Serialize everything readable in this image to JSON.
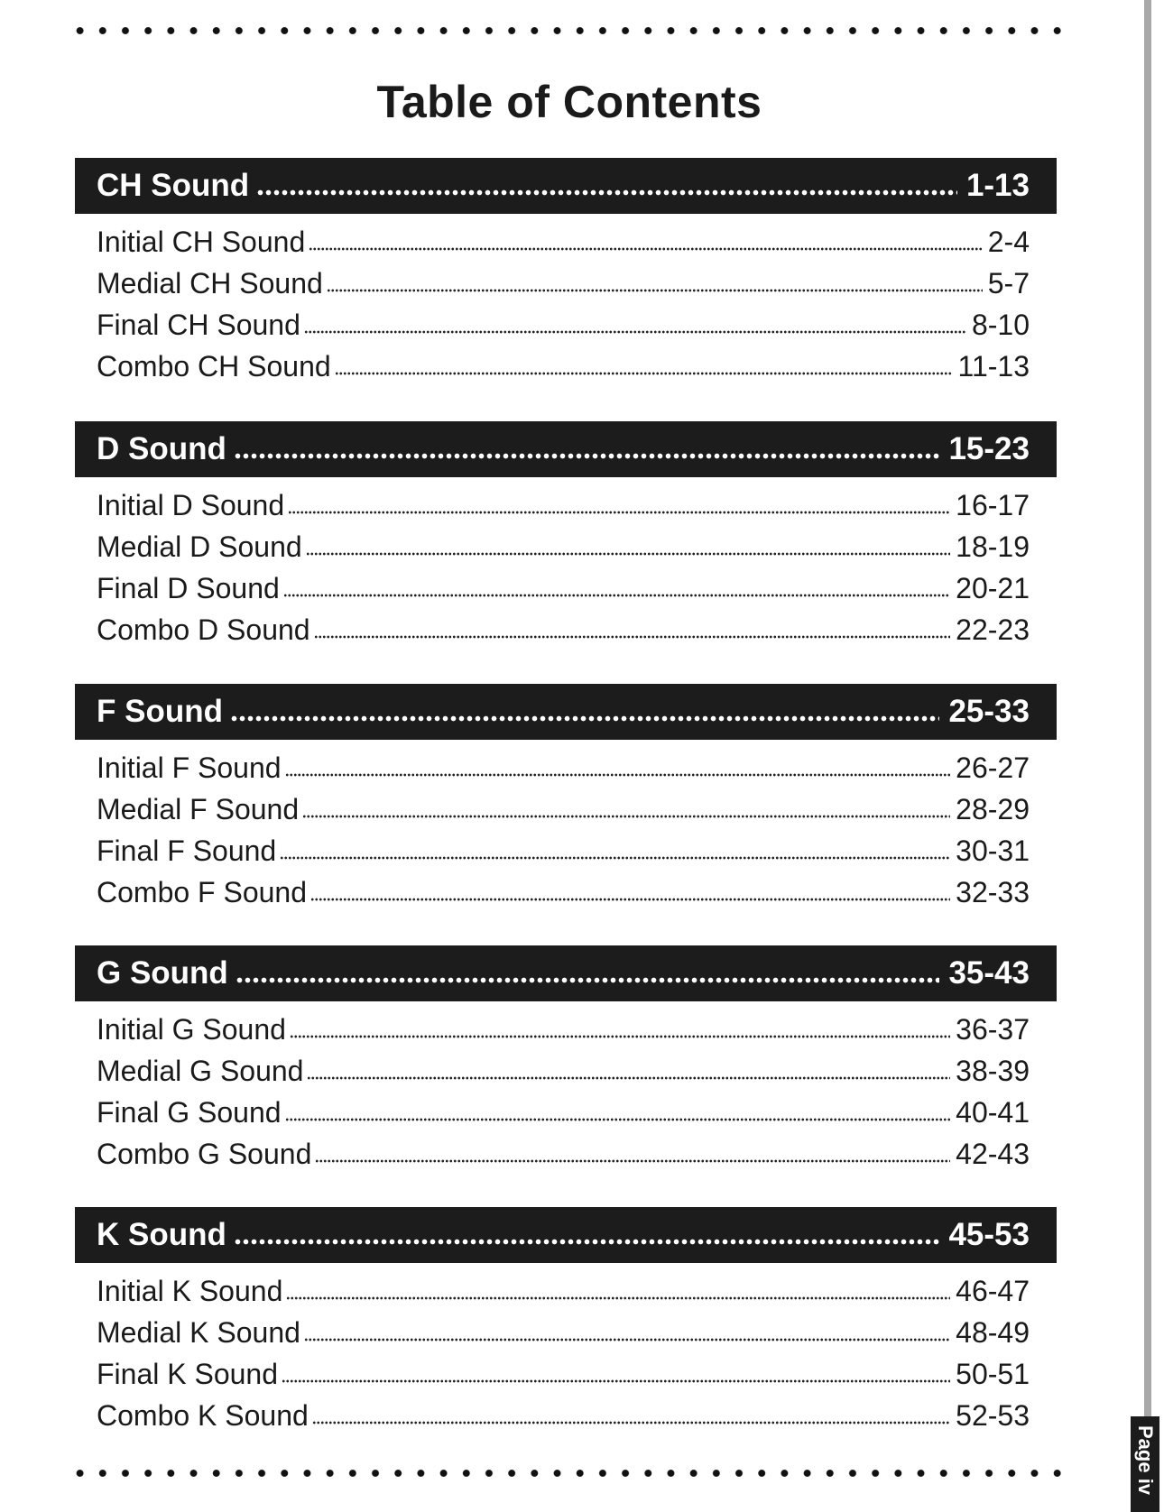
{
  "title": "Table of Contents",
  "page_label": "Page iv",
  "sections": [
    {
      "title": "CH Sound",
      "pages": "1-13",
      "entries": [
        {
          "label": "Initial CH Sound",
          "pages": "2-4"
        },
        {
          "label": "Medial CH Sound",
          "pages": "5-7"
        },
        {
          "label": "Final CH Sound",
          "pages": "8-10"
        },
        {
          "label": "Combo CH Sound",
          "pages": "11-13"
        }
      ]
    },
    {
      "title": "D Sound",
      "pages": "15-23",
      "entries": [
        {
          "label": "Initial D Sound",
          "pages": "16-17"
        },
        {
          "label": "Medial D Sound",
          "pages": "18-19"
        },
        {
          "label": "Final D Sound",
          "pages": "20-21"
        },
        {
          "label": "Combo D Sound",
          "pages": "22-23"
        }
      ]
    },
    {
      "title": "F Sound",
      "pages": "25-33",
      "entries": [
        {
          "label": "Initial F Sound",
          "pages": "26-27"
        },
        {
          "label": "Medial F Sound",
          "pages": "28-29"
        },
        {
          "label": "Final F Sound",
          "pages": "30-31"
        },
        {
          "label": "Combo F Sound",
          "pages": "32-33"
        }
      ]
    },
    {
      "title": "G Sound",
      "pages": "35-43",
      "entries": [
        {
          "label": "Initial G Sound",
          "pages": "36-37"
        },
        {
          "label": "Medial G Sound",
          "pages": "38-39"
        },
        {
          "label": "Final G Sound",
          "pages": "40-41"
        },
        {
          "label": "Combo G Sound",
          "pages": "42-43"
        }
      ]
    },
    {
      "title": "K Sound",
      "pages": "45-53",
      "entries": [
        {
          "label": "Initial K Sound",
          "pages": "46-47"
        },
        {
          "label": "Medial K Sound",
          "pages": "48-49"
        },
        {
          "label": "Final K Sound",
          "pages": "50-51"
        },
        {
          "label": "Combo K Sound",
          "pages": "52-53"
        }
      ]
    }
  ]
}
